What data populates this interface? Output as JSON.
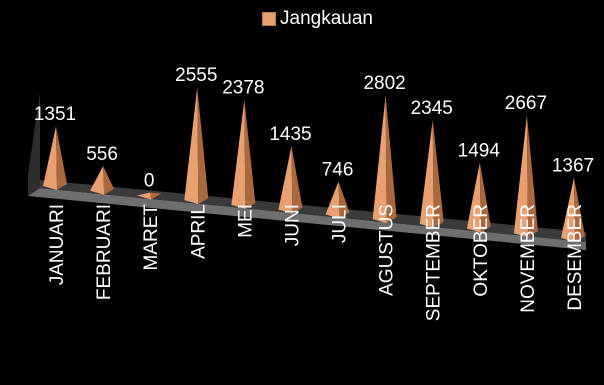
{
  "chart_data": {
    "type": "bar",
    "shape": "pyramid",
    "categories": [
      "JANUARI",
      "FEBRUARI",
      "MARET",
      "APRIL",
      "MEI",
      "JUNI",
      "JULI",
      "AGUSTUS",
      "SEPTEMBER",
      "OKTOBER",
      "NOVEMBER",
      "DESEMBER"
    ],
    "series": [
      {
        "name": "Jangkauan",
        "values": [
          1351,
          556,
          0,
          2555,
          2378,
          1435,
          746,
          2802,
          2345,
          1494,
          2667,
          1367
        ]
      }
    ],
    "title": "",
    "xlabel": "",
    "ylabel": "",
    "legend": "top",
    "grid": false,
    "colors": {
      "bar": "#e8a070",
      "bar_shade": "#a9683e",
      "floor": "#6e6e6e",
      "background": "#000000"
    }
  }
}
